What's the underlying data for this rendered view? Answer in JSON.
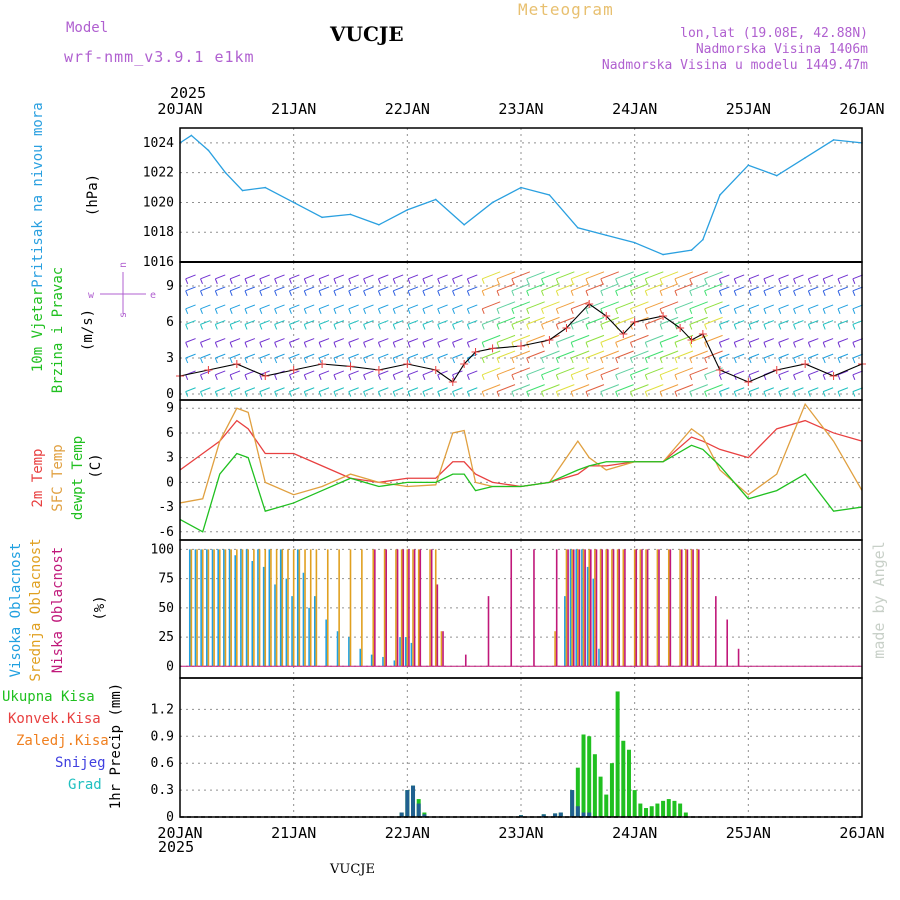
{
  "header": {
    "title": "VUCJE",
    "subtitle": "Meteogram",
    "model_label": "Model",
    "model_name": "wrf-nmm_v3.9.1 e1km",
    "coords": "lon,lat (19.08E, 42.88N)",
    "elevation": "Nadmorska Visina 1406m",
    "model_elevation": "Nadmorska Visina u modelu 1449.47m",
    "year_top": "2025",
    "year_bottom": "2025",
    "footer": "VUCJE",
    "watermark": "made by Angel"
  },
  "colors": {
    "pressure": "#2aa0e0",
    "temp2m": "#e84040",
    "sfc": "#e0a040",
    "dew": "#20c020",
    "high": "#20a0e0",
    "mid": "#e0a020",
    "low": "#c0187a",
    "total": "#20c020",
    "conv": "#e84040",
    "frozen": "#f08020",
    "snow": "#4040e0",
    "hail": "#20c0c0",
    "violet": "#b060d0"
  },
  "date_ticks": [
    "20JAN",
    "21JAN",
    "22JAN",
    "23JAN",
    "24JAN",
    "25JAN",
    "26JAN"
  ],
  "panels": [
    {
      "id": "pressure",
      "axis_title": "Pritisak na nivou mora",
      "unit": "(hPa)",
      "yticks": [
        "1016",
        "1018",
        "1020",
        "1022",
        "1024"
      ]
    },
    {
      "id": "wind",
      "axis_title_1": "10m Vjetar",
      "axis_title_2": "Brzina i Pravac",
      "unit": "(m/s)",
      "yticks": [
        "0",
        "3",
        "6",
        "9"
      ],
      "compass": {
        "w": "w",
        "e": "e",
        "s": "s",
        "n": "n"
      }
    },
    {
      "id": "temp",
      "axis_title_1": "2m Temp",
      "axis_title_2": "SFC Temp",
      "axis_title_3": "dewpt Temp",
      "unit": "(C)",
      "yticks": [
        "-6",
        "-3",
        "0",
        "3",
        "6",
        "9"
      ]
    },
    {
      "id": "cloud",
      "axis_title_1": "Visoka Oblacnost",
      "axis_title_2": "Srednja Oblacnost",
      "axis_title_3": "Niska Oblacnost",
      "unit": "(%)",
      "yticks": [
        "0",
        "25",
        "50",
        "75",
        "100"
      ]
    },
    {
      "id": "precip",
      "legend": [
        "Ukupna Kisa",
        "Konvek.Kisa",
        "Zaledj.Kisa",
        "Snijeg",
        "Grad"
      ],
      "unit": "1hr Precip (mm)",
      "yticks": [
        "0",
        "0.3",
        "0.6",
        "0.9",
        "1.2"
      ]
    }
  ],
  "chart_data": [
    {
      "type": "line",
      "title": "Pritisak na nivou mora",
      "ylabel": "(hPa)",
      "ylim": [
        1016,
        1025
      ],
      "x_days": [
        0,
        0.1,
        0.25,
        0.4,
        0.55,
        0.75,
        1.0,
        1.25,
        1.5,
        1.75,
        2.0,
        2.25,
        2.5,
        2.75,
        3.0,
        3.25,
        3.5,
        3.75,
        4.0,
        4.25,
        4.5,
        4.6,
        4.75,
        5.0,
        5.25,
        5.5,
        5.75,
        6.0
      ],
      "series": [
        {
          "values": [
            1024,
            1024.5,
            1023.5,
            1022,
            1020.8,
            1021,
            1020,
            1019,
            1019.2,
            1018.5,
            1019.5,
            1020.2,
            1018.5,
            1020,
            1021,
            1020.5,
            1018.3,
            1017.8,
            1017.3,
            1016.5,
            1016.8,
            1017.5,
            1020.5,
            1022.5,
            1021.8,
            1023,
            1024.2,
            1024
          ]
        }
      ]
    },
    {
      "type": "line",
      "title": "10m Vjetar",
      "ylabel": "(m/s)",
      "ylim": [
        -0.5,
        11
      ],
      "x_days": [
        0,
        0.25,
        0.5,
        0.75,
        1.0,
        1.25,
        1.5,
        1.75,
        2.0,
        2.25,
        2.4,
        2.5,
        2.6,
        2.75,
        3.0,
        3.25,
        3.4,
        3.6,
        3.75,
        3.9,
        4.0,
        4.25,
        4.4,
        4.5,
        4.6,
        4.75,
        5.0,
        5.25,
        5.5,
        5.75,
        6.0
      ],
      "series": [
        {
          "values": [
            1.5,
            2.0,
            2.5,
            1.5,
            2.0,
            2.5,
            2.3,
            2.0,
            2.5,
            2.0,
            1.0,
            2.5,
            3.5,
            3.8,
            4.0,
            4.5,
            5.5,
            7.5,
            6.5,
            5.0,
            6.0,
            6.5,
            5.5,
            4.5,
            5.0,
            2.0,
            1.0,
            2.0,
            2.5,
            1.5,
            2.5
          ]
        }
      ]
    },
    {
      "type": "line",
      "title": "2m Temp / SFC Temp / dewpt Temp",
      "ylabel": "(C)",
      "ylim": [
        -7,
        10
      ],
      "x_days": [
        0,
        0.2,
        0.35,
        0.5,
        0.6,
        0.75,
        1.0,
        1.25,
        1.5,
        1.75,
        2.0,
        2.25,
        2.4,
        2.5,
        2.6,
        2.75,
        3.0,
        3.25,
        3.5,
        3.6,
        3.75,
        4.0,
        4.25,
        4.5,
        4.6,
        4.75,
        5.0,
        5.25,
        5.5,
        5.75,
        6.0
      ],
      "series": [
        {
          "name": "2m Temp",
          "values": [
            1.5,
            3.5,
            5.0,
            7.5,
            6.5,
            3.5,
            3.5,
            2.0,
            0.5,
            0.0,
            0.5,
            0.5,
            2.5,
            2.5,
            1.0,
            0.0,
            -0.5,
            0.0,
            1.0,
            2.0,
            2.0,
            2.5,
            2.5,
            5.5,
            5.0,
            4.0,
            3.0,
            6.5,
            7.5,
            6.0,
            5.0
          ]
        },
        {
          "name": "SFC Temp",
          "values": [
            -2.5,
            -2.0,
            5.0,
            9.0,
            8.5,
            0.0,
            -1.5,
            -0.5,
            1.0,
            0.0,
            -0.5,
            -0.3,
            6.0,
            6.3,
            0.0,
            -0.5,
            -0.5,
            0.0,
            5.0,
            3.0,
            1.5,
            2.5,
            2.5,
            6.5,
            5.5,
            1.5,
            -1.5,
            1.0,
            9.5,
            5.0,
            -1.0
          ]
        },
        {
          "name": "dewpt Temp",
          "values": [
            -4.5,
            -6.0,
            1.0,
            3.5,
            3.0,
            -3.5,
            -2.5,
            -1.0,
            0.5,
            -0.5,
            0.0,
            0.0,
            1.0,
            1.0,
            -1.0,
            -0.5,
            -0.5,
            0.0,
            1.5,
            2.0,
            2.5,
            2.5,
            2.5,
            4.5,
            4.0,
            2.0,
            -2.0,
            -1.0,
            1.0,
            -3.5,
            -3.0
          ]
        }
      ]
    },
    {
      "type": "bar",
      "title": "Visoka / Srednja / Niska Oblacnost",
      "ylabel": "(%)",
      "ylim": [
        0,
        100
      ],
      "x_days": [
        0.1,
        0.15,
        0.2,
        0.25,
        0.3,
        0.35,
        0.4,
        0.45,
        0.5,
        0.55,
        0.6,
        0.65,
        0.7,
        0.75,
        0.8,
        0.85,
        0.9,
        0.95,
        1.0,
        1.05,
        1.1,
        1.15,
        1.2,
        1.3,
        1.4,
        1.5,
        1.6,
        1.7,
        1.8,
        1.9,
        1.95,
        2.0,
        2.05,
        2.1,
        2.2,
        2.25,
        2.3,
        2.5,
        2.7,
        2.9,
        3.1,
        3.3,
        3.4,
        3.45,
        3.5,
        3.55,
        3.6,
        3.65,
        3.7,
        3.75,
        3.8,
        3.85,
        3.9,
        4.0,
        4.05,
        4.1,
        4.2,
        4.3,
        4.4,
        4.45,
        4.5,
        4.55,
        4.7,
        4.8,
        4.9
      ],
      "series": [
        {
          "name": "Visoka Oblacnost",
          "values": [
            100,
            100,
            100,
            100,
            100,
            100,
            100,
            100,
            95,
            100,
            100,
            90,
            100,
            85,
            100,
            70,
            100,
            75,
            60,
            100,
            80,
            50,
            60,
            40,
            30,
            25,
            15,
            10,
            8,
            5,
            25,
            25,
            20,
            0,
            0,
            0,
            0,
            0,
            0,
            0,
            0,
            0,
            60,
            100,
            100,
            100,
            85,
            75,
            15,
            0,
            0,
            0,
            0,
            0,
            0,
            0,
            0,
            0,
            0,
            0,
            0,
            0,
            0,
            0,
            0
          ]
        },
        {
          "name": "Srednja Oblacnost",
          "values": [
            100,
            100,
            100,
            100,
            100,
            100,
            100,
            100,
            100,
            100,
            100,
            100,
            100,
            100,
            100,
            100,
            100,
            100,
            100,
            100,
            100,
            100,
            100,
            100,
            100,
            100,
            100,
            100,
            100,
            100,
            100,
            100,
            100,
            100,
            100,
            100,
            30,
            0,
            0,
            0,
            0,
            30,
            100,
            100,
            100,
            100,
            100,
            100,
            100,
            100,
            100,
            100,
            100,
            100,
            100,
            100,
            100,
            100,
            100,
            100,
            100,
            100,
            0,
            0,
            0
          ]
        },
        {
          "name": "Niska Oblacnost",
          "values": [
            0,
            0,
            0,
            0,
            0,
            0,
            0,
            0,
            0,
            0,
            0,
            0,
            0,
            0,
            0,
            0,
            0,
            0,
            0,
            0,
            0,
            0,
            0,
            0,
            0,
            0,
            0,
            100,
            100,
            100,
            100,
            100,
            100,
            100,
            100,
            70,
            30,
            10,
            60,
            100,
            100,
            100,
            100,
            100,
            100,
            100,
            100,
            100,
            100,
            100,
            100,
            100,
            100,
            100,
            100,
            100,
            100,
            100,
            100,
            100,
            100,
            100,
            60,
            40,
            15
          ]
        }
      ]
    },
    {
      "type": "bar",
      "title": "1hr Precip",
      "ylabel": "(mm)",
      "ylim": [
        0,
        1.5
      ],
      "x_days": [
        1.95,
        2.0,
        2.05,
        2.1,
        2.15,
        3.0,
        3.2,
        3.3,
        3.35,
        3.45,
        3.5,
        3.55,
        3.6,
        3.65,
        3.7,
        3.75,
        3.8,
        3.85,
        3.9,
        3.95,
        4.0,
        4.05,
        4.1,
        4.15,
        4.2,
        4.25,
        4.3,
        4.35,
        4.4,
        4.45
      ],
      "series": [
        {
          "name": "Ukupna Kisa",
          "values": [
            0.05,
            0.3,
            0.35,
            0.2,
            0.05,
            0.02,
            0.03,
            0.04,
            0.05,
            0.3,
            0.55,
            0.92,
            0.9,
            0.7,
            0.45,
            0.25,
            0.6,
            1.4,
            0.85,
            0.75,
            0.3,
            0.15,
            0.1,
            0.12,
            0.15,
            0.18,
            0.2,
            0.18,
            0.15,
            0.05
          ]
        },
        {
          "name": "Snijeg",
          "values": [
            0.05,
            0.3,
            0.35,
            0.15,
            0.03,
            0.02,
            0.03,
            0.04,
            0.05,
            0.3,
            0.12,
            0.05,
            0.05,
            0.0,
            0.0,
            0.0,
            0.0,
            0.0,
            0.0,
            0.0,
            0.0,
            0.0,
            0.0,
            0.0,
            0.0,
            0.0,
            0.0,
            0.0,
            0.0,
            0.0
          ]
        }
      ]
    }
  ]
}
